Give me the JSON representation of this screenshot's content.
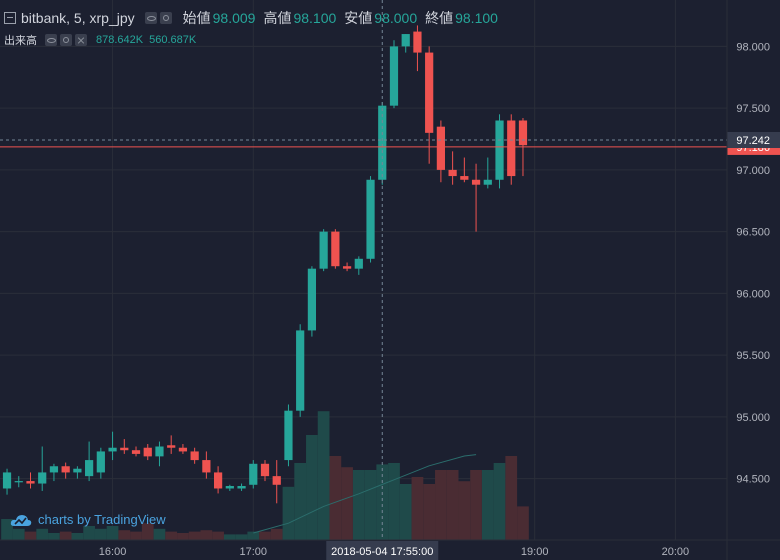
{
  "legend": {
    "symbol": "bitbank, 5, xrp_jpy",
    "ohlc": [
      {
        "label": "始値",
        "value": "98.009"
      },
      {
        "label": "高値",
        "value": "98.100"
      },
      {
        "label": "安値",
        "value": "98.000"
      },
      {
        "label": "終値",
        "value": "98.100"
      }
    ],
    "volume_title": "出来高",
    "volume_values": [
      "878.642K",
      "560.687K"
    ]
  },
  "watermark": "charts by TradingView",
  "colors": {
    "background": "#1c2030",
    "up": "#26a69a",
    "down": "#ef5350",
    "up_volume": "#1f4a4a",
    "down_volume": "#4a2c33",
    "ma_line": "#2b6d6c",
    "grid": "#2a2e39",
    "axis_text": "#b2b5be",
    "crosshair": "#758696",
    "price_line": "#ef5350"
  },
  "chart_data": {
    "type": "candlestick",
    "y_axis": {
      "ticks": [
        "98.000",
        "97.500",
        "97.000",
        "96.500",
        "96.000",
        "95.500",
        "95.000",
        "94.500"
      ],
      "tick_values": [
        98.0,
        97.5,
        97.0,
        96.5,
        96.0,
        95.5,
        95.0,
        94.5
      ],
      "range": [
        94.1,
        98.23
      ],
      "side": "right"
    },
    "x_axis": {
      "ticks": [
        "16:00",
        "17:00",
        "19:00",
        "20:00"
      ],
      "tick_minutes": [
        0,
        60,
        180,
        240
      ],
      "range_minutes": [
        -48,
        262
      ]
    },
    "crosshair": {
      "label": "2018-05-04 17:55:00",
      "minute": 115,
      "price": 97.242
    },
    "current_price": {
      "label": "97.242",
      "value": 97.242
    },
    "price_line": {
      "label": "97.186",
      "value": 97.186
    },
    "volume_ma": [
      {
        "minute": 60,
        "value": 0.05
      },
      {
        "minute": 75,
        "value": 0.12
      },
      {
        "minute": 90,
        "value": 0.24
      },
      {
        "minute": 105,
        "value": 0.33
      },
      {
        "minute": 120,
        "value": 0.43
      },
      {
        "minute": 135,
        "value": 0.53
      },
      {
        "minute": 150,
        "value": 0.6
      },
      {
        "minute": 155,
        "value": 0.61
      }
    ],
    "candles": [
      {
        "minute": -45,
        "open": 94.42,
        "high": 94.58,
        "low": 94.37,
        "close": 94.55,
        "volume": 0.15
      },
      {
        "minute": -40,
        "open": 94.47,
        "high": 94.52,
        "low": 94.43,
        "close": 94.48,
        "volume": 0.08
      },
      {
        "minute": -35,
        "open": 94.48,
        "high": 94.55,
        "low": 94.42,
        "close": 94.46,
        "volume": 0.06
      },
      {
        "minute": -30,
        "open": 94.46,
        "high": 94.76,
        "low": 94.4,
        "close": 94.55,
        "volume": 0.08
      },
      {
        "minute": -25,
        "open": 94.55,
        "high": 94.62,
        "low": 94.48,
        "close": 94.6,
        "volume": 0.05
      },
      {
        "minute": -20,
        "open": 94.6,
        "high": 94.63,
        "low": 94.5,
        "close": 94.55,
        "volume": 0.06
      },
      {
        "minute": -15,
        "open": 94.55,
        "high": 94.6,
        "low": 94.5,
        "close": 94.58,
        "volume": 0.05
      },
      {
        "minute": -10,
        "open": 94.52,
        "high": 94.8,
        "low": 94.48,
        "close": 94.65,
        "volume": 0.1
      },
      {
        "minute": -5,
        "open": 94.55,
        "high": 94.75,
        "low": 94.5,
        "close": 94.72,
        "volume": 0.08
      },
      {
        "minute": 0,
        "open": 94.72,
        "high": 94.88,
        "low": 94.65,
        "close": 94.75,
        "volume": 0.1
      },
      {
        "minute": 5,
        "open": 94.75,
        "high": 94.82,
        "low": 94.7,
        "close": 94.73,
        "volume": 0.07
      },
      {
        "minute": 10,
        "open": 94.73,
        "high": 94.76,
        "low": 94.68,
        "close": 94.7,
        "volume": 0.06
      },
      {
        "minute": 15,
        "open": 94.75,
        "high": 94.78,
        "low": 94.65,
        "close": 94.68,
        "volume": 0.12
      },
      {
        "minute": 20,
        "open": 94.68,
        "high": 94.8,
        "low": 94.6,
        "close": 94.76,
        "volume": 0.08
      },
      {
        "minute": 25,
        "open": 94.77,
        "high": 94.85,
        "low": 94.7,
        "close": 94.75,
        "volume": 0.06
      },
      {
        "minute": 30,
        "open": 94.75,
        "high": 94.78,
        "low": 94.7,
        "close": 94.72,
        "volume": 0.05
      },
      {
        "minute": 35,
        "open": 94.72,
        "high": 94.75,
        "low": 94.62,
        "close": 94.65,
        "volume": 0.06
      },
      {
        "minute": 40,
        "open": 94.65,
        "high": 94.72,
        "low": 94.5,
        "close": 94.55,
        "volume": 0.07
      },
      {
        "minute": 45,
        "open": 94.55,
        "high": 94.6,
        "low": 94.38,
        "close": 94.42,
        "volume": 0.06
      },
      {
        "minute": 50,
        "open": 94.42,
        "high": 94.45,
        "low": 94.4,
        "close": 94.44,
        "volume": 0.04
      },
      {
        "minute": 55,
        "open": 94.42,
        "high": 94.46,
        "low": 94.4,
        "close": 94.44,
        "volume": 0.04
      },
      {
        "minute": 60,
        "open": 94.45,
        "high": 94.65,
        "low": 94.42,
        "close": 94.62,
        "volume": 0.06
      },
      {
        "minute": 65,
        "open": 94.62,
        "high": 94.65,
        "low": 94.48,
        "close": 94.52,
        "volume": 0.06
      },
      {
        "minute": 70,
        "open": 94.52,
        "high": 94.65,
        "low": 94.3,
        "close": 94.45,
        "volume": 0.08
      },
      {
        "minute": 75,
        "open": 94.65,
        "high": 95.1,
        "low": 94.6,
        "close": 95.05,
        "volume": 0.38
      },
      {
        "minute": 80,
        "open": 95.05,
        "high": 95.75,
        "low": 95.0,
        "close": 95.7,
        "volume": 0.55
      },
      {
        "minute": 85,
        "open": 95.7,
        "high": 96.22,
        "low": 95.65,
        "close": 96.2,
        "volume": 0.75
      },
      {
        "minute": 90,
        "open": 96.2,
        "high": 96.52,
        "low": 96.18,
        "close": 96.5,
        "volume": 0.92
      },
      {
        "minute": 95,
        "open": 96.5,
        "high": 96.52,
        "low": 96.2,
        "close": 96.22,
        "volume": 0.6
      },
      {
        "minute": 100,
        "open": 96.22,
        "high": 96.25,
        "low": 96.18,
        "close": 96.2,
        "volume": 0.52
      },
      {
        "minute": 105,
        "open": 96.2,
        "high": 96.3,
        "low": 96.15,
        "close": 96.28,
        "volume": 0.5
      },
      {
        "minute": 110,
        "open": 96.28,
        "high": 96.95,
        "low": 96.25,
        "close": 96.92,
        "volume": 0.5
      },
      {
        "minute": 115,
        "open": 96.92,
        "high": 97.55,
        "low": 96.88,
        "close": 97.52,
        "volume": 0.54
      },
      {
        "minute": 120,
        "open": 97.52,
        "high": 98.05,
        "low": 97.5,
        "close": 98.0,
        "volume": 0.55
      },
      {
        "minute": 125,
        "open": 98.0,
        "high": 98.1,
        "low": 97.95,
        "close": 98.1,
        "volume": 0.4
      },
      {
        "minute": 130,
        "open": 98.12,
        "high": 98.17,
        "low": 97.8,
        "close": 97.95,
        "volume": 0.45
      },
      {
        "minute": 135,
        "open": 97.95,
        "high": 98.0,
        "low": 97.05,
        "close": 97.3,
        "volume": 0.4
      },
      {
        "minute": 140,
        "open": 97.35,
        "high": 97.4,
        "low": 96.9,
        "close": 97.0,
        "volume": 0.5
      },
      {
        "minute": 145,
        "open": 97.0,
        "high": 97.15,
        "low": 96.88,
        "close": 96.95,
        "volume": 0.5
      },
      {
        "minute": 150,
        "open": 96.95,
        "high": 97.1,
        "low": 96.9,
        "close": 96.92,
        "volume": 0.42
      },
      {
        "minute": 155,
        "open": 96.92,
        "high": 97.05,
        "low": 96.5,
        "close": 96.88,
        "volume": 0.5
      },
      {
        "minute": 160,
        "open": 96.88,
        "high": 97.1,
        "low": 96.85,
        "close": 96.92,
        "volume": 0.5
      },
      {
        "minute": 165,
        "open": 96.92,
        "high": 97.45,
        "low": 96.85,
        "close": 97.4,
        "volume": 0.55
      },
      {
        "minute": 170,
        "open": 97.4,
        "high": 97.45,
        "low": 96.88,
        "close": 96.95,
        "volume": 0.6
      },
      {
        "minute": 175,
        "open": 97.4,
        "high": 97.42,
        "low": 96.95,
        "close": 97.2,
        "volume": 0.24
      }
    ]
  }
}
